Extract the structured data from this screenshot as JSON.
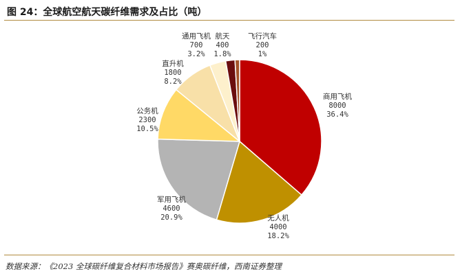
{
  "page": {
    "title": "图 24：全球航空航天碳纤维需求及占比（吨）",
    "source": "数据来源：《2023 全球碳纤维复合材料市场报告》赛奥碳纤维，西南证券整理"
  },
  "chart_data": {
    "type": "pie",
    "start": "12 o'clock, clockwise",
    "slices": [
      {
        "label": "商用飞机",
        "value": 8000,
        "percent": "36.4%",
        "color": "#c00000"
      },
      {
        "label": "无人机",
        "value": 4000,
        "percent": "18.2%",
        "color": "#bf9000"
      },
      {
        "label": "军用飞机",
        "value": 4600,
        "percent": "20.9%",
        "color": "#b4b4b4"
      },
      {
        "label": "公务机",
        "value": 2300,
        "percent": "10.5%",
        "color": "#ffd966"
      },
      {
        "label": "直升机",
        "value": 1800,
        "percent": "8.2%",
        "color": "#f8e0a8"
      },
      {
        "label": "通用飞机",
        "value": 700,
        "percent": "3.2%",
        "color": "#fdf0cc"
      },
      {
        "label": "航天",
        "value": 400,
        "percent": "1.8%",
        "color": "#6b0e0e"
      },
      {
        "label": "飞行汽车",
        "value": 200,
        "percent": "1%",
        "color": "#a5552a"
      }
    ]
  }
}
